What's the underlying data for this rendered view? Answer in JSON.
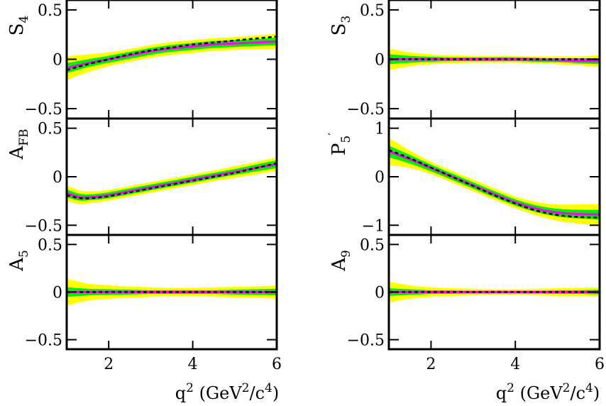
{
  "chart_data": [
    {
      "type": "line",
      "ylabel": "S4",
      "ylabel_main": "S",
      "ylabel_sub": "4",
      "ylabel_prime": "",
      "xlim": [
        1,
        6
      ],
      "ylim": [
        -0.6,
        0.6
      ],
      "yticks": [
        -0.5,
        0,
        0.5
      ],
      "ytick_labels": [
        "−0.5",
        "0",
        "0.5"
      ],
      "x": [
        1.0,
        1.5,
        2.0,
        2.5,
        3.0,
        3.5,
        4.0,
        4.5,
        5.0,
        5.5,
        6.0
      ],
      "central": [
        -0.09,
        -0.04,
        0.0,
        0.04,
        0.08,
        0.11,
        0.13,
        0.15,
        0.16,
        0.17,
        0.18
      ],
      "band_1sigma": [
        0.05,
        0.04,
        0.035,
        0.035,
        0.035,
        0.035,
        0.035,
        0.035,
        0.035,
        0.035,
        0.04
      ],
      "band_2sigma": [
        0.12,
        0.09,
        0.07,
        0.065,
        0.065,
        0.065,
        0.065,
        0.065,
        0.065,
        0.07,
        0.08
      ],
      "reference": [
        -0.11,
        -0.05,
        0.0,
        0.05,
        0.09,
        0.12,
        0.15,
        0.17,
        0.19,
        0.21,
        0.23
      ]
    },
    {
      "type": "line",
      "ylabel": "S3",
      "ylabel_main": "S",
      "ylabel_sub": "3",
      "ylabel_prime": "",
      "xlim": [
        1,
        6
      ],
      "ylim": [
        -0.6,
        0.6
      ],
      "yticks": [
        -0.5,
        0,
        0.5
      ],
      "ytick_labels": [
        "−0.5",
        "0",
        "0.5"
      ],
      "x": [
        1.0,
        1.5,
        2.0,
        2.5,
        3.0,
        3.5,
        4.0,
        4.5,
        5.0,
        5.5,
        6.0
      ],
      "central": [
        0.0,
        0.0,
        0.0,
        0.0,
        0.0,
        0.0,
        0.0,
        -0.005,
        -0.01,
        -0.015,
        -0.02
      ],
      "band_1sigma": [
        0.05,
        0.035,
        0.025,
        0.02,
        0.02,
        0.02,
        0.02,
        0.02,
        0.02,
        0.025,
        0.03
      ],
      "band_2sigma": [
        0.11,
        0.07,
        0.05,
        0.04,
        0.035,
        0.035,
        0.035,
        0.035,
        0.04,
        0.045,
        0.06
      ],
      "reference": [
        0.0,
        0.0,
        0.0,
        0.0,
        0.0,
        0.0,
        0.0,
        0.0,
        0.0,
        0.0,
        0.0
      ]
    },
    {
      "type": "line",
      "ylabel": "AFB",
      "ylabel_main": "A",
      "ylabel_sub": "FB",
      "ylabel_prime": "",
      "xlim": [
        1,
        6
      ],
      "ylim": [
        -0.6,
        0.6
      ],
      "yticks": [
        -0.5,
        0,
        0.5
      ],
      "ytick_labels": [
        "−0.5",
        "0",
        "0.5"
      ],
      "x": [
        1.0,
        1.3,
        1.6,
        2.0,
        2.5,
        3.0,
        3.5,
        4.0,
        4.5,
        5.0,
        5.5,
        6.0
      ],
      "central": [
        -0.17,
        -0.21,
        -0.21,
        -0.19,
        -0.15,
        -0.11,
        -0.07,
        -0.03,
        0.01,
        0.05,
        0.09,
        0.13
      ],
      "band_1sigma": [
        0.04,
        0.035,
        0.03,
        0.03,
        0.03,
        0.03,
        0.03,
        0.03,
        0.03,
        0.03,
        0.035,
        0.04
      ],
      "band_2sigma": [
        0.08,
        0.07,
        0.06,
        0.055,
        0.055,
        0.055,
        0.055,
        0.055,
        0.055,
        0.06,
        0.065,
        0.07
      ],
      "reference": [
        -0.19,
        -0.22,
        -0.22,
        -0.2,
        -0.16,
        -0.12,
        -0.08,
        -0.04,
        0.0,
        0.04,
        0.09,
        0.14
      ]
    },
    {
      "type": "line",
      "ylabel": "P5'",
      "ylabel_main": "P",
      "ylabel_sub": "5",
      "ylabel_prime": "′",
      "xlim": [
        1,
        6
      ],
      "ylim": [
        -1.2,
        1.2
      ],
      "yticks": [
        -1,
        0,
        1
      ],
      "ytick_labels": [
        "−1",
        "0",
        "1"
      ],
      "x": [
        1.0,
        1.5,
        2.0,
        2.5,
        3.0,
        3.5,
        4.0,
        4.5,
        5.0,
        5.5,
        6.0
      ],
      "central": [
        0.52,
        0.36,
        0.18,
        0.0,
        -0.18,
        -0.36,
        -0.53,
        -0.66,
        -0.74,
        -0.77,
        -0.78
      ],
      "band_1sigma": [
        0.12,
        0.09,
        0.07,
        0.065,
        0.065,
        0.065,
        0.065,
        0.07,
        0.08,
        0.09,
        0.1
      ],
      "band_2sigma": [
        0.28,
        0.18,
        0.13,
        0.12,
        0.12,
        0.12,
        0.12,
        0.14,
        0.17,
        0.2,
        0.22
      ],
      "reference": [
        0.55,
        0.38,
        0.19,
        0.0,
        -0.19,
        -0.38,
        -0.55,
        -0.7,
        -0.79,
        -0.83,
        -0.84
      ]
    },
    {
      "type": "line",
      "ylabel": "A5",
      "ylabel_main": "A",
      "ylabel_sub": "5",
      "ylabel_prime": "",
      "xlim": [
        1,
        6
      ],
      "ylim": [
        -0.6,
        0.6
      ],
      "yticks": [
        -0.5,
        0,
        0.5
      ],
      "ytick_labels": [
        "−0.5",
        "0",
        "0.5"
      ],
      "x": [
        1.0,
        1.5,
        2.0,
        2.5,
        3.0,
        3.5,
        4.0,
        4.5,
        5.0,
        5.5,
        6.0
      ],
      "central": [
        0.0,
        0.0,
        0.0,
        0.0,
        0.0,
        0.0,
        0.0,
        0.0,
        0.0,
        0.0,
        0.0
      ],
      "band_1sigma": [
        0.05,
        0.035,
        0.03,
        0.025,
        0.02,
        0.02,
        0.02,
        0.02,
        0.025,
        0.03,
        0.035
      ],
      "band_2sigma": [
        0.14,
        0.09,
        0.07,
        0.06,
        0.05,
        0.045,
        0.045,
        0.05,
        0.055,
        0.06,
        0.07
      ],
      "reference": [
        0.0,
        0.0,
        0.0,
        0.0,
        0.0,
        0.0,
        0.0,
        0.0,
        0.0,
        0.0,
        0.0
      ]
    },
    {
      "type": "line",
      "ylabel": "A9",
      "ylabel_main": "A",
      "ylabel_sub": "9",
      "ylabel_prime": "",
      "xlim": [
        1,
        6
      ],
      "ylim": [
        -0.6,
        0.6
      ],
      "yticks": [
        -0.5,
        0,
        0.5
      ],
      "ytick_labels": [
        "−0.5",
        "0",
        "0.5"
      ],
      "x": [
        1.0,
        1.5,
        2.0,
        2.5,
        3.0,
        3.5,
        4.0,
        4.5,
        5.0,
        5.5,
        6.0
      ],
      "central": [
        0.0,
        0.0,
        0.0,
        0.0,
        0.0,
        0.0,
        0.0,
        0.0,
        0.0,
        0.0,
        0.0
      ],
      "band_1sigma": [
        0.04,
        0.03,
        0.02,
        0.018,
        0.015,
        0.015,
        0.015,
        0.015,
        0.018,
        0.02,
        0.025
      ],
      "band_2sigma": [
        0.11,
        0.07,
        0.05,
        0.04,
        0.035,
        0.03,
        0.03,
        0.035,
        0.04,
        0.045,
        0.05
      ],
      "reference": [
        0.0,
        0.0,
        0.0,
        0.0,
        0.0,
        0.0,
        0.0,
        0.0,
        0.0,
        0.0,
        0.0
      ]
    }
  ],
  "xaxis": {
    "xticks": [
      2,
      4,
      6
    ],
    "xtick_labels": [
      "2",
      "4",
      "6"
    ],
    "label_q": "q",
    "label_q_exp": "2",
    "label_open": " (GeV",
    "label_gev_exp": "2",
    "label_slash": "/c",
    "label_c_exp": "4",
    "label_close": ")"
  },
  "colors": {
    "band_2sigma": "#ffff00",
    "band_1sigma": "#00ee00",
    "central": "#ff00ff",
    "reference": "#000000",
    "zero_line": "#7f7f7f"
  }
}
